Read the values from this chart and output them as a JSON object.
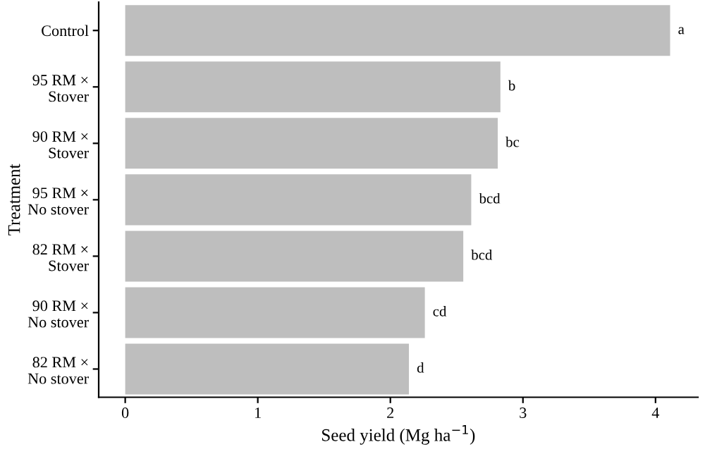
{
  "chart_data": {
    "type": "bar",
    "orientation": "horizontal",
    "xlabel": "Seed yield (Mg ha$^{−1}$)",
    "ylabel": "Treatment",
    "categories": [
      "Control",
      "95 RM ×\nStover",
      "90 RM ×\nStover",
      "95 RM ×\nNo stover",
      "82 RM ×\nStover",
      "90 RM ×\nNo stover",
      "82 RM ×\nNo stover"
    ],
    "values": [
      4.11,
      2.83,
      2.81,
      2.61,
      2.55,
      2.26,
      2.14
    ],
    "value_labels": [
      "a",
      "b",
      "bc",
      "bcd",
      "bcd",
      "cd",
      "d"
    ],
    "color": "#bebebe",
    "xlim": [
      -0.2,
      4.32
    ],
    "xticks": [
      0,
      1,
      2,
      3,
      4
    ],
    "grid": false,
    "legend": false
  }
}
